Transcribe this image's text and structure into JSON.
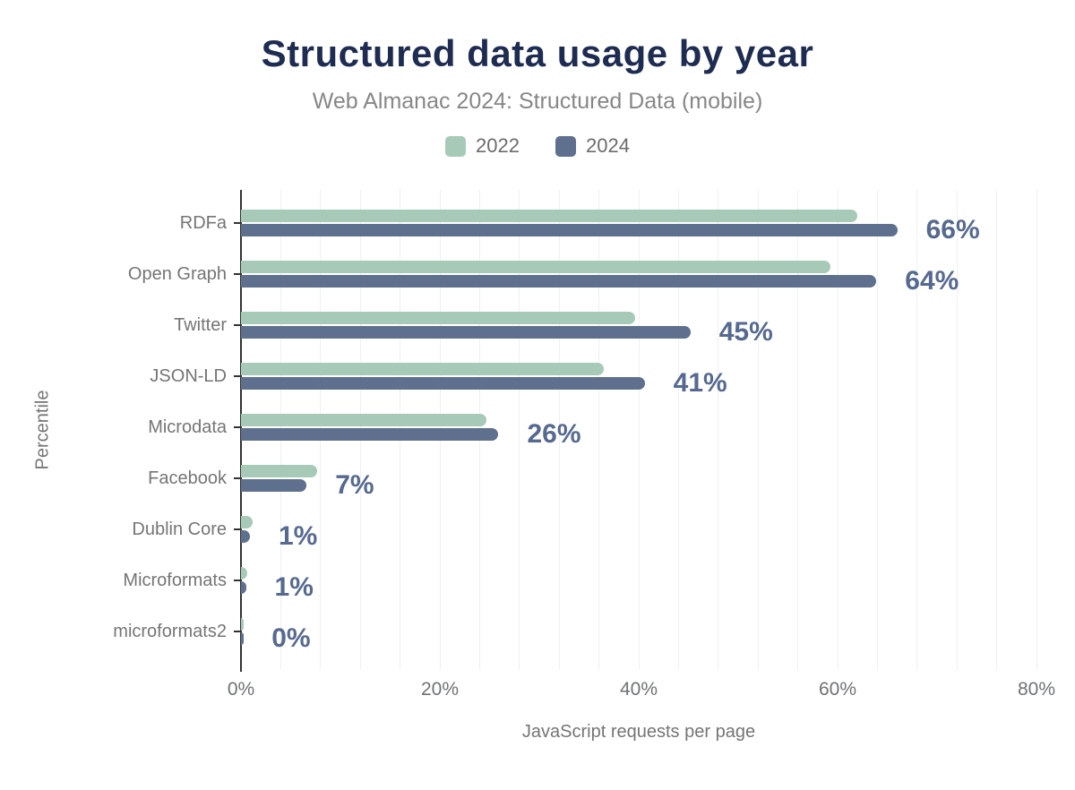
{
  "header": {
    "title": "Structured data usage by year",
    "subtitle": "Web Almanac 2024: Structured Data (mobile)"
  },
  "legend": {
    "items": [
      {
        "label": "2022",
        "color": "#a7cab8"
      },
      {
        "label": "2024",
        "color": "#5e708d"
      }
    ]
  },
  "chart_data": {
    "type": "bar",
    "orientation": "horizontal",
    "title": "Structured data usage by year",
    "subtitle": "Web Almanac 2024: Structured Data (mobile)",
    "xlabel": "JavaScript requests per page",
    "ylabel": "Percentile",
    "xlim": [
      0,
      80
    ],
    "grid": true,
    "grid_step": 4,
    "legend_position": "top",
    "categories": [
      "RDFa",
      "Open Graph",
      "Twitter",
      "JSON-LD",
      "Microdata",
      "Facebook",
      "Dublin Core",
      "Microformats",
      "microformats2"
    ],
    "series": [
      {
        "name": "2022",
        "color": "#a7cab8",
        "values": [
          62,
          59.3,
          39.6,
          36.5,
          24.7,
          7.7,
          1.2,
          0.6,
          0.3
        ]
      },
      {
        "name": "2024",
        "color": "#5e708d",
        "values": [
          66,
          63.9,
          45.2,
          40.6,
          25.9,
          6.6,
          0.9,
          0.5,
          0.2
        ]
      }
    ],
    "value_labels": {
      "labeled_series": "2024",
      "color": "#566990",
      "texts": [
        "66%",
        "64%",
        "45%",
        "41%",
        "26%",
        "7%",
        "1%",
        "1%",
        "0%"
      ]
    },
    "x_ticks": [
      {
        "value": 0,
        "label": "0%"
      },
      {
        "value": 20,
        "label": "20%"
      },
      {
        "value": 40,
        "label": "40%"
      },
      {
        "value": 60,
        "label": "60%"
      },
      {
        "value": 80,
        "label": "80%"
      }
    ]
  },
  "colors": {
    "title": "#1e2c52",
    "subtitle": "#878787",
    "axis": "#333333",
    "gridline": "#f0f0f0",
    "category_text": "#757575",
    "tick_text": "#6f7275",
    "value_label": "#566990",
    "series_2022": "#a7cab8",
    "series_2024": "#5e708d",
    "background": "#ffffff"
  }
}
